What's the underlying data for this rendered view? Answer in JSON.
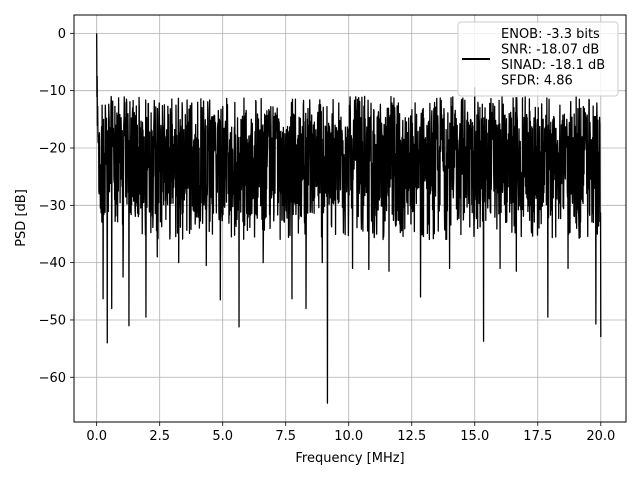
{
  "chart_data": {
    "type": "line",
    "xlabel": "Frequency [MHz]",
    "ylabel": "PSD [dB]",
    "xlim": [
      -0.9,
      21.0
    ],
    "ylim": [
      -67.8,
      3.2
    ],
    "xticks": [
      "0.0",
      "2.5",
      "5.0",
      "7.5",
      "10.0",
      "12.5",
      "15.0",
      "17.5",
      "20.0"
    ],
    "xtick_values": [
      0,
      2.5,
      5,
      7.5,
      10,
      12.5,
      15,
      17.5,
      20
    ],
    "yticks": [
      "0",
      "−10",
      "−20",
      "−30",
      "−40",
      "−50",
      "−60"
    ],
    "ytick_values": [
      0,
      -10,
      -20,
      -30,
      -40,
      -50,
      -60
    ],
    "grid": true,
    "legend_position": "top-right",
    "series": [
      {
        "name": "ENOB: -3.3 bits\nSNR: -18.07 dB\nSINAD: -18.1 dB\nSFDR: 4.86",
        "color": "#000000",
        "x_range": [
          0,
          20
        ],
        "n_points": 2048,
        "typical_range": [
          -35,
          -10
        ],
        "peaks": [
          {
            "x": 0.0,
            "y": 0.0
          },
          {
            "x": 0.02,
            "y": -7.5
          },
          {
            "x": 7.75,
            "y": -9.0
          },
          {
            "x": 15.0,
            "y": -9.5
          }
        ],
        "dips": [
          {
            "x": 0.1,
            "y": -28.0
          },
          {
            "x": 0.15,
            "y": -30.5
          },
          {
            "x": 0.25,
            "y": -46.3
          },
          {
            "x": 0.42,
            "y": -54.0
          },
          {
            "x": 0.6,
            "y": -48.0
          },
          {
            "x": 1.05,
            "y": -42.5
          },
          {
            "x": 1.28,
            "y": -51.0
          },
          {
            "x": 1.95,
            "y": -49.5
          },
          {
            "x": 2.4,
            "y": -39.0
          },
          {
            "x": 3.25,
            "y": -40.0
          },
          {
            "x": 4.35,
            "y": -40.5
          },
          {
            "x": 4.9,
            "y": -46.5
          },
          {
            "x": 5.65,
            "y": -51.2
          },
          {
            "x": 6.6,
            "y": -40.0
          },
          {
            "x": 7.75,
            "y": -46.3
          },
          {
            "x": 8.3,
            "y": -48.0
          },
          {
            "x": 8.95,
            "y": -40.0
          },
          {
            "x": 9.15,
            "y": -64.5
          },
          {
            "x": 10.15,
            "y": -41.0
          },
          {
            "x": 10.8,
            "y": -41.2
          },
          {
            "x": 11.6,
            "y": -41.5
          },
          {
            "x": 12.85,
            "y": -46.0
          },
          {
            "x": 14.0,
            "y": -41.0
          },
          {
            "x": 15.35,
            "y": -53.7
          },
          {
            "x": 16.0,
            "y": -41.0
          },
          {
            "x": 16.65,
            "y": -41.5
          },
          {
            "x": 17.9,
            "y": -49.5
          },
          {
            "x": 18.7,
            "y": -41.0
          },
          {
            "x": 19.8,
            "y": -50.7
          },
          {
            "x": 20.0,
            "y": -53.0
          }
        ]
      }
    ]
  }
}
